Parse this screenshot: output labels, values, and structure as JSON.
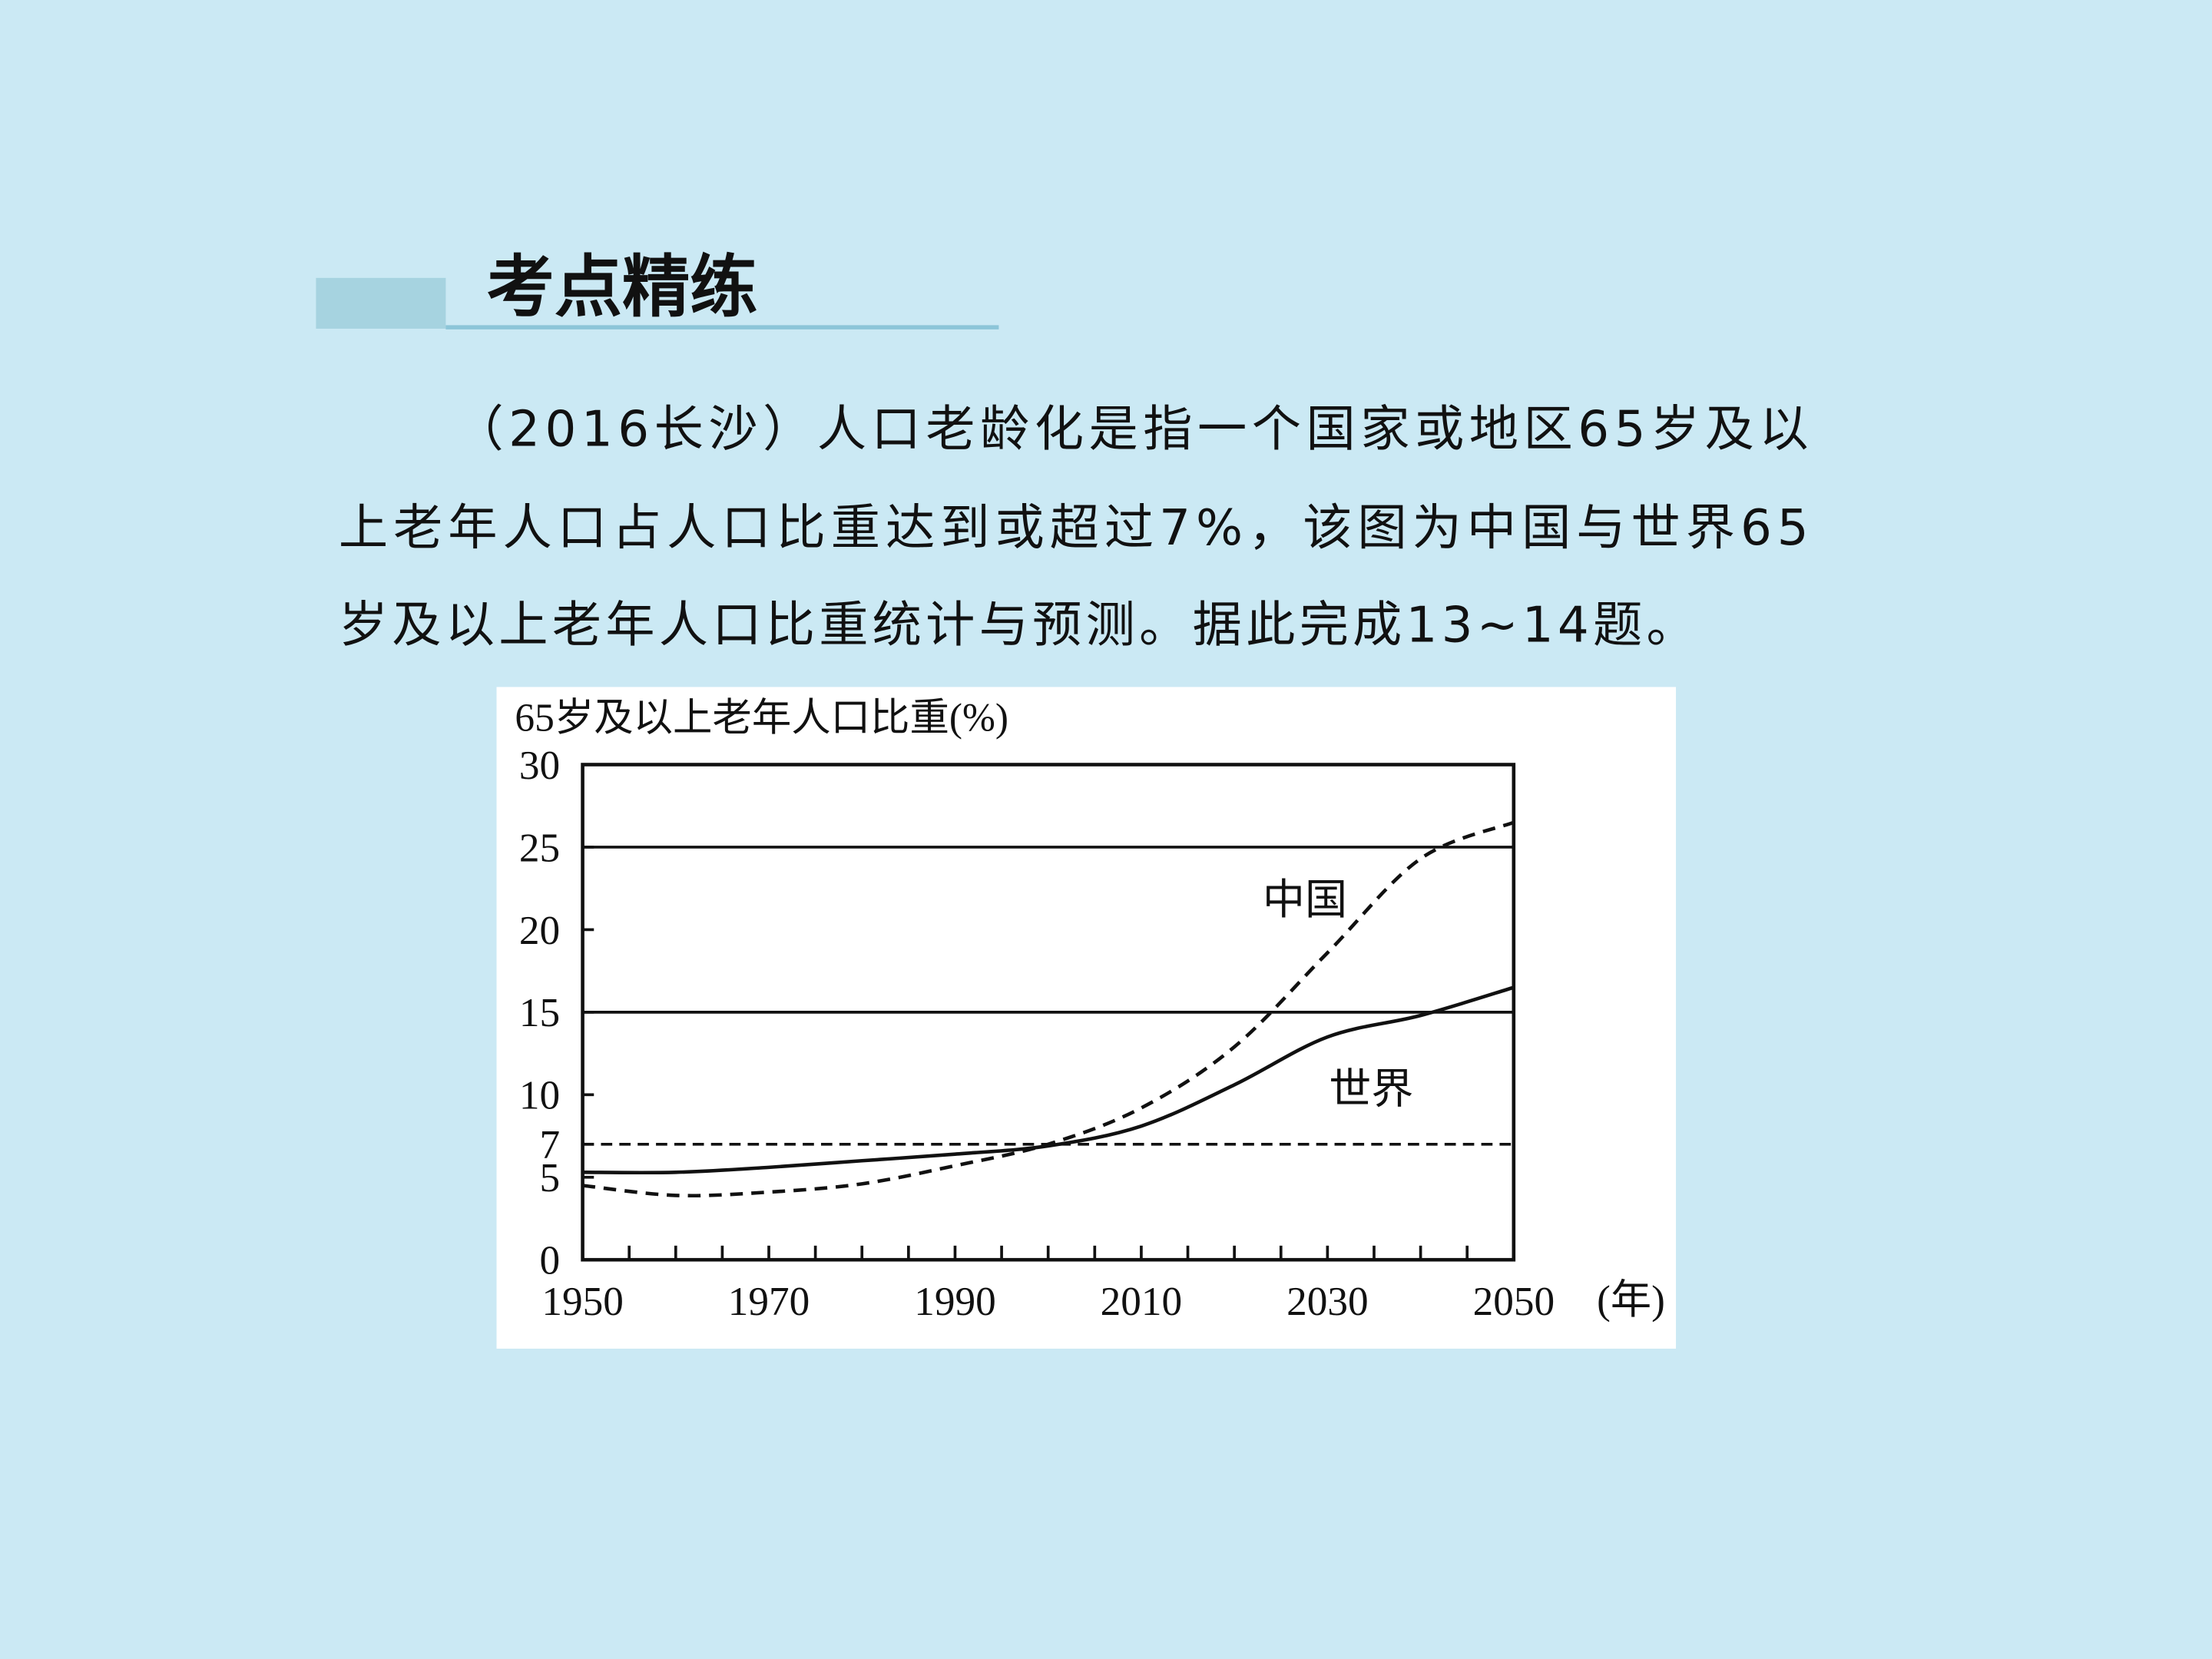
{
  "header": {
    "title": "考点精练"
  },
  "paragraph": {
    "lines": [
      "（2016长沙）人口老龄化是指一个国家或地区65岁及以",
      "上老年人口占人口比重达到或超过7%，该图为中国与世界65",
      "岁及以上老年人口比重统计与预测。据此完成13~14题。"
    ]
  },
  "chart_data": {
    "type": "line",
    "y_label": "65岁及以上老年人口比重(%)",
    "x_unit": "(年)",
    "x": [
      1950,
      1960,
      1970,
      1980,
      1990,
      2000,
      2010,
      2020,
      2030,
      2040,
      2050
    ],
    "series": [
      {
        "name": "中国",
        "color": "#111111",
        "dash": "dashed",
        "values": [
          4.5,
          3.9,
          4.1,
          4.6,
          5.7,
          7.0,
          9.2,
          12.9,
          18.6,
          24.3,
          26.5
        ]
      },
      {
        "name": "世界",
        "color": "#111111",
        "dash": "solid",
        "values": [
          5.3,
          5.3,
          5.6,
          6.0,
          6.4,
          6.9,
          8.1,
          10.6,
          13.5,
          14.8,
          16.5
        ]
      }
    ],
    "xlim": [
      1950,
      2050
    ],
    "ylim": [
      0,
      30
    ],
    "yticks": [
      0,
      5,
      7,
      10,
      15,
      20,
      25,
      30
    ],
    "xticks": [
      1950,
      1970,
      1990,
      2010,
      2030,
      2050
    ],
    "xminorticks": [
      1955,
      1960,
      1965,
      1975,
      1980,
      1985,
      1995,
      2000,
      2005,
      2015,
      2020,
      2025,
      2035,
      2040,
      2045
    ],
    "ref_lines": [
      {
        "value": 25,
        "style": "solid"
      },
      {
        "value": 15,
        "style": "solid"
      },
      {
        "value": 7,
        "style": "dashed"
      }
    ]
  }
}
